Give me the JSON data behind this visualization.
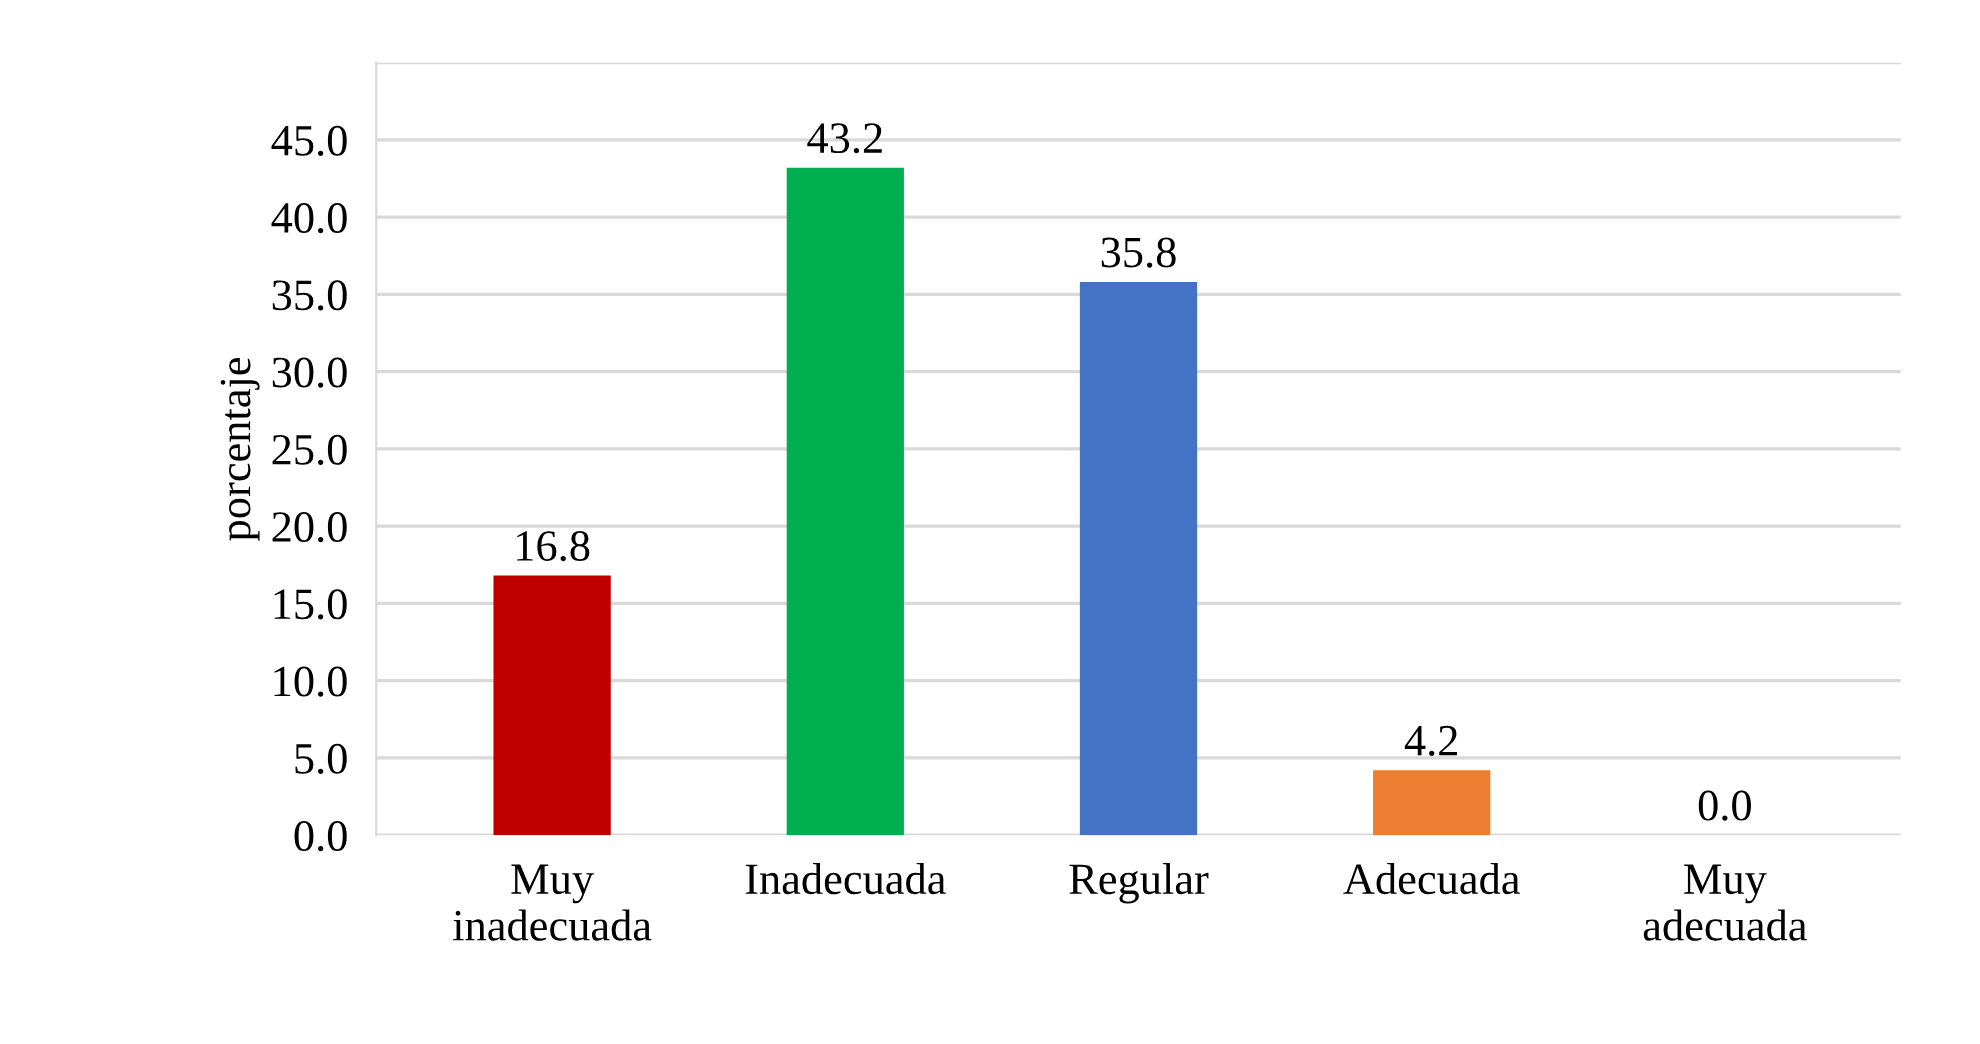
{
  "chart_data": {
    "type": "bar",
    "ylabel": "porcentaje",
    "categories": [
      "Muy\ninadecuada",
      "Inadecuada",
      "Regular",
      "Adecuada",
      "Muy\nadecuada"
    ],
    "values": [
      16.8,
      43.2,
      35.8,
      4.2,
      0.0
    ],
    "colors": [
      "#c00000",
      "#00b050",
      "#4472c4",
      "#ed7d31",
      "#7030a0"
    ],
    "value_labels": [
      "16.8",
      "43.2",
      "35.8",
      "4.2",
      "0.0"
    ],
    "ylim": [
      0,
      50
    ],
    "yticks": [
      {
        "value": 0,
        "label": "0.0"
      },
      {
        "value": 5,
        "label": "5.0"
      },
      {
        "value": 10,
        "label": "10.0"
      },
      {
        "value": 15,
        "label": "15.0"
      },
      {
        "value": 20,
        "label": "20.0"
      },
      {
        "value": 25,
        "label": "25.0"
      },
      {
        "value": 30,
        "label": "30.0"
      },
      {
        "value": 35,
        "label": "35.0"
      },
      {
        "value": 40,
        "label": "40.0"
      },
      {
        "value": 45,
        "label": "45.0"
      },
      {
        "value": 50,
        "label": null
      }
    ],
    "grid": "y",
    "legend": false
  }
}
